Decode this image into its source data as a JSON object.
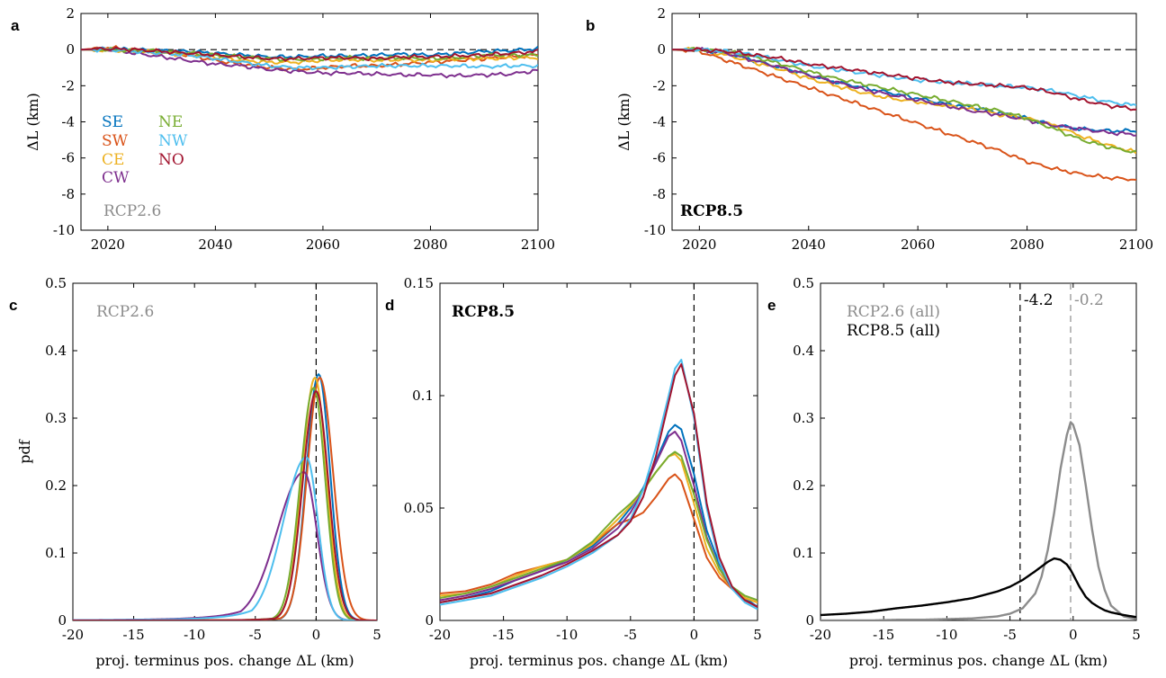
{
  "colors": {
    "SE": "#0072BD",
    "SW": "#D95319",
    "CE": "#EDB120",
    "CW": "#7E2F8E",
    "NE": "#77AC30",
    "NW": "#4DBEEE",
    "NO": "#A2142F",
    "rcp26_label": "#8c8c8c",
    "rcp85_label": "#000000"
  },
  "chart_data": [
    {
      "id": "a",
      "letter": "a",
      "type": "line",
      "title": "",
      "xlabel": "",
      "ylabel": "ΔL (km)",
      "xlim": [
        2015,
        2100
      ],
      "ylim": [
        -10,
        2
      ],
      "xticks": [
        "2020",
        "2040",
        "2060",
        "2080",
        "2100"
      ],
      "yticks": [
        "2",
        "0",
        "-2",
        "-4",
        "-6",
        "-8",
        "-10"
      ],
      "annotation": "RCP2.6",
      "legend": [
        "SE",
        "SW",
        "CE",
        "CW",
        "NE",
        "NW",
        "NO"
      ],
      "x": [
        2015,
        2020,
        2025,
        2030,
        2035,
        2040,
        2045,
        2050,
        2055,
        2060,
        2065,
        2070,
        2075,
        2080,
        2085,
        2090,
        2095,
        2100
      ],
      "series": [
        {
          "name": "SE",
          "values": [
            0,
            0.05,
            0,
            -0.05,
            -0.1,
            -0.2,
            -0.3,
            -0.4,
            -0.4,
            -0.35,
            -0.35,
            -0.3,
            -0.25,
            -0.3,
            -0.2,
            -0.1,
            -0.05,
            0.05
          ]
        },
        {
          "name": "SW",
          "values": [
            0,
            0.1,
            0,
            -0.1,
            -0.3,
            -0.6,
            -0.8,
            -1.0,
            -1.1,
            -1.0,
            -0.9,
            -0.9,
            -0.8,
            -0.7,
            -0.6,
            -0.5,
            -0.4,
            -0.3
          ]
        },
        {
          "name": "CE",
          "values": [
            0,
            -0.05,
            -0.1,
            -0.2,
            -0.3,
            -0.4,
            -0.6,
            -0.7,
            -0.7,
            -0.6,
            -0.55,
            -0.6,
            -0.55,
            -0.6,
            -0.5,
            -0.5,
            -0.45,
            -0.45
          ]
        },
        {
          "name": "CW",
          "values": [
            0,
            0,
            -0.2,
            -0.4,
            -0.6,
            -0.8,
            -0.9,
            -1.1,
            -1.2,
            -1.3,
            -1.3,
            -1.35,
            -1.4,
            -1.4,
            -1.45,
            -1.4,
            -1.35,
            -1.15
          ]
        },
        {
          "name": "NE",
          "values": [
            0,
            0,
            -0.05,
            -0.1,
            -0.2,
            -0.3,
            -0.4,
            -0.5,
            -0.55,
            -0.5,
            -0.45,
            -0.5,
            -0.45,
            -0.5,
            -0.45,
            -0.3,
            -0.3,
            -0.3
          ]
        },
        {
          "name": "NW",
          "values": [
            0,
            0,
            -0.1,
            -0.2,
            -0.3,
            -0.5,
            -0.7,
            -0.9,
            -1.0,
            -1.0,
            -0.95,
            -0.9,
            -0.9,
            -0.9,
            -0.9,
            -0.95,
            -0.9,
            -0.9
          ]
        },
        {
          "name": "NO",
          "values": [
            0,
            0.05,
            0,
            -0.1,
            -0.2,
            -0.3,
            -0.4,
            -0.5,
            -0.5,
            -0.45,
            -0.45,
            -0.5,
            -0.4,
            -0.4,
            -0.35,
            -0.3,
            -0.2,
            -0.1
          ]
        }
      ]
    },
    {
      "id": "b",
      "letter": "b",
      "type": "line",
      "title": "",
      "xlabel": "",
      "ylabel": "ΔL (km)",
      "xlim": [
        2015,
        2100
      ],
      "ylim": [
        -10,
        2
      ],
      "xticks": [
        "2020",
        "2040",
        "2060",
        "2080",
        "2100"
      ],
      "yticks": [
        "2",
        "0",
        "-2",
        "-4",
        "-6",
        "-8",
        "-10"
      ],
      "annotation": "RCP8.5",
      "x": [
        2015,
        2020,
        2025,
        2030,
        2035,
        2040,
        2045,
        2050,
        2055,
        2060,
        2065,
        2070,
        2075,
        2080,
        2085,
        2090,
        2095,
        2100
      ],
      "series": [
        {
          "name": "SE",
          "values": [
            0,
            0,
            -0.2,
            -0.6,
            -1.0,
            -1.4,
            -1.8,
            -2.1,
            -2.4,
            -2.7,
            -3.0,
            -3.2,
            -3.5,
            -3.8,
            -4.2,
            -4.4,
            -4.5,
            -4.5
          ]
        },
        {
          "name": "SW",
          "values": [
            0,
            -0.1,
            -0.6,
            -1.1,
            -1.6,
            -2.1,
            -2.6,
            -3.1,
            -3.6,
            -4.1,
            -4.6,
            -5.1,
            -5.6,
            -6.2,
            -6.6,
            -6.9,
            -7.1,
            -7.2
          ]
        },
        {
          "name": "CE",
          "values": [
            0,
            0,
            -0.3,
            -0.7,
            -1.1,
            -1.6,
            -2.0,
            -2.4,
            -2.7,
            -2.9,
            -3.1,
            -3.3,
            -3.6,
            -3.8,
            -4.2,
            -4.8,
            -5.3,
            -5.7
          ]
        },
        {
          "name": "CW",
          "values": [
            0,
            0,
            -0.2,
            -0.6,
            -1.0,
            -1.4,
            -1.8,
            -2.2,
            -2.5,
            -2.8,
            -3.1,
            -3.4,
            -3.6,
            -3.9,
            -4.2,
            -4.4,
            -4.6,
            -4.7
          ]
        },
        {
          "name": "NE",
          "values": [
            0,
            0,
            -0.1,
            -0.4,
            -0.8,
            -1.2,
            -1.6,
            -1.9,
            -2.2,
            -2.5,
            -2.8,
            -3.1,
            -3.4,
            -3.8,
            -4.4,
            -5.0,
            -5.4,
            -5.7
          ]
        },
        {
          "name": "NW",
          "values": [
            0,
            0,
            -0.1,
            -0.3,
            -0.6,
            -0.9,
            -1.1,
            -1.3,
            -1.5,
            -1.7,
            -1.8,
            -1.9,
            -2.0,
            -2.1,
            -2.3,
            -2.6,
            -2.9,
            -3.1
          ]
        },
        {
          "name": "NO",
          "values": [
            0,
            0,
            -0.1,
            -0.3,
            -0.5,
            -0.8,
            -1.0,
            -1.2,
            -1.4,
            -1.6,
            -1.8,
            -1.9,
            -2.0,
            -2.1,
            -2.4,
            -2.8,
            -3.1,
            -3.3
          ]
        }
      ]
    },
    {
      "id": "c",
      "letter": "c",
      "type": "line",
      "title": "",
      "xlabel": "proj. terminus pos. change ΔL (km)",
      "ylabel": "pdf",
      "xlim": [
        -20,
        5
      ],
      "ylim": [
        0,
        0.5
      ],
      "xticks": [
        "-20",
        "-15",
        "-10",
        "-5",
        "0",
        "5"
      ],
      "yticks": [
        "0",
        "0.1",
        "0.2",
        "0.3",
        "0.4",
        "0.5"
      ],
      "annotation": "RCP2.6",
      "vline": 0,
      "series": [
        {
          "name": "SE",
          "mu": 0.2,
          "peak": 0.365,
          "sl": 1.0,
          "sr": 0.95
        },
        {
          "name": "SW",
          "mu": 0.3,
          "peak": 0.36,
          "sl": 1.05,
          "sr": 1.1
        },
        {
          "name": "CE",
          "mu": -0.1,
          "peak": 0.36,
          "sl": 1.05,
          "sr": 0.95
        },
        {
          "name": "CW",
          "mu": -1.0,
          "peak": 0.22,
          "sl": 2.2,
          "sr": 1.05
        },
        {
          "name": "NE",
          "mu": -0.2,
          "peak": 0.345,
          "sl": 1.1,
          "sr": 0.95
        },
        {
          "name": "NW",
          "mu": -0.8,
          "peak": 0.242,
          "sl": 1.9,
          "sr": 0.95
        },
        {
          "name": "NO",
          "mu": 0.0,
          "peak": 0.34,
          "sl": 1.1,
          "sr": 1.0
        }
      ]
    },
    {
      "id": "d",
      "letter": "d",
      "type": "line",
      "title": "",
      "xlabel": "proj. terminus pos. change ΔL (km)",
      "ylabel": "",
      "xlim": [
        -20,
        5
      ],
      "ylim": [
        0,
        0.15
      ],
      "xticks": [
        "-20",
        "-15",
        "-10",
        "-5",
        "0",
        "5"
      ],
      "yticks": [
        "0",
        "0.05",
        "0.1",
        "0.15"
      ],
      "annotation": "RCP8.5",
      "vline": 0,
      "x": [
        -20,
        -18,
        -16,
        -14,
        -12,
        -10,
        -8,
        -6,
        -5,
        -4,
        -3,
        -2,
        -1.5,
        -1,
        0,
        1,
        2,
        3,
        4,
        5
      ],
      "series": [
        {
          "name": "SE",
          "values": [
            0.008,
            0.01,
            0.013,
            0.018,
            0.022,
            0.027,
            0.033,
            0.043,
            0.05,
            0.059,
            0.071,
            0.084,
            0.087,
            0.085,
            0.065,
            0.04,
            0.025,
            0.015,
            0.01,
            0.006
          ]
        },
        {
          "name": "SW",
          "values": [
            0.012,
            0.013,
            0.016,
            0.021,
            0.024,
            0.027,
            0.034,
            0.043,
            0.045,
            0.048,
            0.055,
            0.063,
            0.065,
            0.062,
            0.045,
            0.028,
            0.019,
            0.014,
            0.01,
            0.008
          ]
        },
        {
          "name": "CE",
          "values": [
            0.011,
            0.012,
            0.015,
            0.02,
            0.024,
            0.027,
            0.034,
            0.045,
            0.051,
            0.058,
            0.066,
            0.073,
            0.074,
            0.071,
            0.052,
            0.032,
            0.021,
            0.014,
            0.01,
            0.008
          ]
        },
        {
          "name": "CW",
          "values": [
            0.009,
            0.011,
            0.014,
            0.018,
            0.022,
            0.026,
            0.032,
            0.041,
            0.048,
            0.058,
            0.07,
            0.082,
            0.084,
            0.08,
            0.06,
            0.037,
            0.023,
            0.014,
            0.009,
            0.006
          ]
        },
        {
          "name": "NE",
          "values": [
            0.01,
            0.012,
            0.015,
            0.019,
            0.023,
            0.027,
            0.035,
            0.047,
            0.052,
            0.058,
            0.066,
            0.073,
            0.075,
            0.073,
            0.056,
            0.036,
            0.023,
            0.015,
            0.011,
            0.009
          ]
        },
        {
          "name": "NW",
          "values": [
            0.007,
            0.009,
            0.011,
            0.015,
            0.019,
            0.024,
            0.03,
            0.038,
            0.045,
            0.058,
            0.077,
            0.1,
            0.112,
            0.116,
            0.09,
            0.05,
            0.026,
            0.014,
            0.008,
            0.005
          ]
        },
        {
          "name": "NO",
          "values": [
            0.008,
            0.01,
            0.012,
            0.016,
            0.02,
            0.025,
            0.031,
            0.038,
            0.044,
            0.055,
            0.073,
            0.097,
            0.109,
            0.114,
            0.092,
            0.052,
            0.028,
            0.015,
            0.009,
            0.006
          ]
        }
      ]
    },
    {
      "id": "e",
      "letter": "e",
      "type": "line",
      "title": "",
      "xlabel": "proj. terminus pos. change ΔL (km)",
      "ylabel": "",
      "xlim": [
        -20,
        5
      ],
      "ylim": [
        0,
        0.5
      ],
      "xticks": [
        "-20",
        "-15",
        "-10",
        "-5",
        "0",
        "5"
      ],
      "yticks": [
        "0",
        "0.1",
        "0.2",
        "0.3",
        "0.4",
        "0.5"
      ],
      "legend": [
        "RCP2.6 (all)",
        "RCP8.5 (all)"
      ],
      "vlines": [
        {
          "x": -4.2,
          "label": "-4.2",
          "series": "RCP8.5 (all)"
        },
        {
          "x": -0.2,
          "label": "-0.2",
          "series": "RCP2.6 (all)"
        }
      ],
      "x": [
        -20,
        -18,
        -16,
        -14,
        -12,
        -10,
        -8,
        -6,
        -5,
        -4,
        -3,
        -2.5,
        -2,
        -1.5,
        -1,
        -0.5,
        -0.2,
        0,
        0.5,
        1,
        1.5,
        2,
        2.5,
        3,
        4,
        5
      ],
      "series": [
        {
          "name": "RCP2.6 (all)",
          "values": [
            0,
            0,
            0,
            0.001,
            0.001,
            0.002,
            0.003,
            0.006,
            0.01,
            0.018,
            0.04,
            0.065,
            0.105,
            0.16,
            0.225,
            0.275,
            0.294,
            0.29,
            0.26,
            0.2,
            0.135,
            0.08,
            0.045,
            0.022,
            0.006,
            0.002
          ]
        },
        {
          "name": "RCP8.5 (all)",
          "values": [
            0.008,
            0.01,
            0.013,
            0.018,
            0.022,
            0.027,
            0.033,
            0.043,
            0.05,
            0.06,
            0.073,
            0.08,
            0.087,
            0.092,
            0.09,
            0.083,
            0.075,
            0.068,
            0.05,
            0.035,
            0.026,
            0.02,
            0.015,
            0.012,
            0.008,
            0.005
          ]
        }
      ]
    }
  ]
}
